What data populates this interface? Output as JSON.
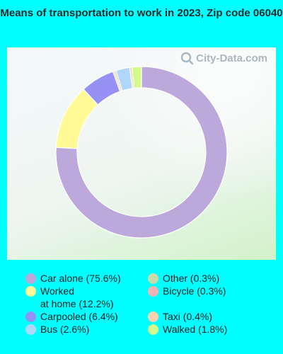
{
  "title": "Means of transportation to work in 2023, Zip code 06040",
  "watermark": "City-Data.com",
  "chart_data": {
    "type": "pie",
    "style": "donut",
    "title": "Means of transportation to work in 2023, Zip code 06040",
    "slices": [
      {
        "label": "Car alone",
        "value": 75.6,
        "legend": "Car alone (75.6%)",
        "color": "#BCA8DA"
      },
      {
        "label": "Worked at home",
        "value": 12.2,
        "legend": "Worked\nat home (12.2%)",
        "color": "#FFFA96"
      },
      {
        "label": "Carpooled",
        "value": 6.4,
        "legend": "Carpooled (6.4%)",
        "color": "#9691F5"
      },
      {
        "label": "Other",
        "value": 0.3,
        "legend": "Other (0.3%)",
        "color": "#C8DCAA"
      },
      {
        "label": "Bicycle",
        "value": 0.3,
        "legend": "Bicycle (0.3%)",
        "color": "#F0B4B4"
      },
      {
        "label": "Bus",
        "value": 2.6,
        "legend": "Bus (2.6%)",
        "color": "#AFD7FA"
      },
      {
        "label": "Taxi",
        "value": 0.4,
        "legend": "Taxi (0.4%)",
        "color": "#FAD2AF"
      },
      {
        "label": "Walked",
        "value": 1.8,
        "legend": "Walked (1.8%)",
        "color": "#D2FA8C"
      }
    ],
    "legend_placement": "bottom"
  }
}
